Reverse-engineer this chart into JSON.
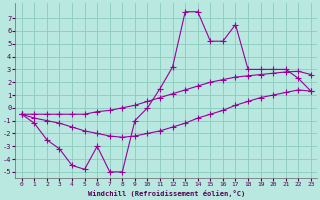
{
  "xlabel": "Windchill (Refroidissement éolien,°C)",
  "bg_color": "#b8e8e0",
  "grid_color": "#88ccbb",
  "line_color": "#990099",
  "x_data": [
    0,
    1,
    2,
    3,
    4,
    5,
    6,
    7,
    8,
    9,
    10,
    11,
    12,
    13,
    14,
    15,
    16,
    17,
    18,
    19,
    20,
    21,
    22,
    23
  ],
  "y_zigzag": [
    -0.5,
    -1.2,
    -2.5,
    -3.2,
    -4.5,
    -4.8,
    -3.0,
    -5.0,
    -5.0,
    -1.0,
    0.0,
    1.5,
    3.2,
    7.5,
    7.5,
    5.2,
    5.2,
    6.5,
    3.0,
    3.0,
    3.0,
    3.0,
    2.3,
    1.3
  ],
  "y_upper_diag": [
    -0.5,
    -0.5,
    -0.5,
    -0.5,
    -0.5,
    -0.5,
    -0.3,
    -0.2,
    0.0,
    0.2,
    0.5,
    0.8,
    1.1,
    1.4,
    1.7,
    2.0,
    2.2,
    2.4,
    2.5,
    2.6,
    2.7,
    2.8,
    2.85,
    2.6
  ],
  "y_lower_diag": [
    -0.5,
    -0.8,
    -1.0,
    -1.2,
    -1.5,
    -1.8,
    -2.0,
    -2.2,
    -2.3,
    -2.2,
    -2.0,
    -1.8,
    -1.5,
    -1.2,
    -0.8,
    -0.5,
    -0.2,
    0.2,
    0.5,
    0.8,
    1.0,
    1.2,
    1.4,
    1.3
  ],
  "ylim": [
    -5.5,
    8.2
  ],
  "xlim": [
    -0.5,
    23.5
  ],
  "yticks": [
    -5,
    -4,
    -3,
    -2,
    -1,
    0,
    1,
    2,
    3,
    4,
    5,
    6,
    7
  ],
  "xticks": [
    0,
    1,
    2,
    3,
    4,
    5,
    6,
    7,
    8,
    9,
    10,
    11,
    12,
    13,
    14,
    15,
    16,
    17,
    18,
    19,
    20,
    21,
    22,
    23
  ],
  "marker": "+",
  "markersize": 4,
  "linewidth": 0.8
}
